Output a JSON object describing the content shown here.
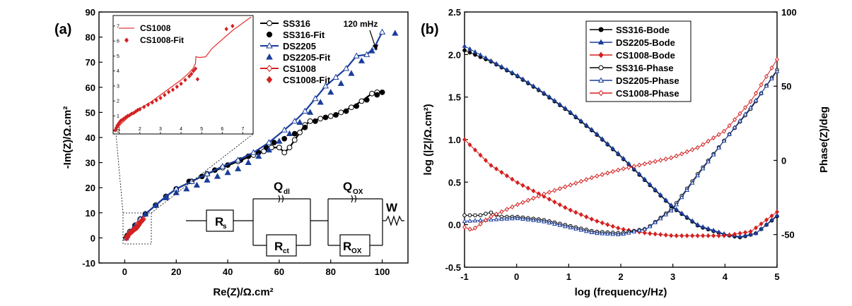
{
  "chart_data": [
    {
      "panel": "a",
      "type": "scatter",
      "panel_label": "(a)",
      "xlabel": "Re(Z)/Ω.cm²",
      "ylabel": "-Im(Z)/Ω.cm²",
      "xlim": [
        -10,
        110
      ],
      "ylim": [
        -10,
        90
      ],
      "xticks": [
        0,
        20,
        40,
        60,
        80,
        100
      ],
      "yticks": [
        -10,
        0,
        10,
        20,
        30,
        40,
        50,
        60,
        70,
        80,
        90
      ],
      "annotation": "120 mHz",
      "legend_position": "top-right",
      "series": [
        {
          "name": "SS316",
          "color": "#000000",
          "marker": "open-circle",
          "points": [
            [
              0.5,
              0
            ],
            [
              2,
              2.5
            ],
            [
              4,
              5
            ],
            [
              6,
              7.5
            ],
            [
              8,
              9.5
            ],
            [
              12,
              13
            ],
            [
              16,
              16.5
            ],
            [
              20,
              19.5
            ],
            [
              26,
              22.5
            ],
            [
              32,
              25.5
            ],
            [
              38,
              28
            ],
            [
              44,
              30.5
            ],
            [
              50,
              33
            ],
            [
              54,
              34.5
            ],
            [
              57,
              36
            ],
            [
              60,
              36
            ],
            [
              62,
              34
            ],
            [
              64,
              36
            ],
            [
              66,
              39
            ],
            [
              68,
              42
            ],
            [
              70,
              45
            ],
            [
              72,
              46.5
            ],
            [
              76,
              47.5
            ],
            [
              80,
              48.5
            ],
            [
              84,
              50
            ],
            [
              88,
              52
            ],
            [
              92,
              54.5
            ],
            [
              96,
              57.5
            ],
            [
              98,
              58
            ]
          ]
        },
        {
          "name": "SS316-Fit",
          "color": "#000000",
          "marker": "filled-circle",
          "points": [
            [
              1,
              1
            ],
            [
              4,
              5
            ],
            [
              8,
              9.5
            ],
            [
              12,
              13
            ],
            [
              16,
              16.5
            ],
            [
              20,
              19.5
            ],
            [
              25,
              22.5
            ],
            [
              30,
              24.5
            ],
            [
              35,
              27
            ],
            [
              40,
              29
            ],
            [
              45,
              31
            ],
            [
              48,
              32.5
            ],
            [
              52,
              34
            ],
            [
              55,
              36
            ],
            [
              58,
              38
            ],
            [
              62,
              39.5
            ],
            [
              66,
              41.5
            ],
            [
              70,
              44
            ],
            [
              74,
              46.5
            ],
            [
              78,
              48
            ],
            [
              82,
              49
            ],
            [
              86,
              50.5
            ],
            [
              90,
              52.5
            ],
            [
              94,
              55
            ],
            [
              98,
              57
            ],
            [
              100,
              58
            ]
          ]
        },
        {
          "name": "DS2205",
          "color": "#1a3d9c",
          "marker": "open-triangle",
          "points": [
            [
              0.5,
              0
            ],
            [
              2,
              2.5
            ],
            [
              4,
              5
            ],
            [
              6,
              7.5
            ],
            [
              8,
              9.5
            ],
            [
              12,
              13
            ],
            [
              16,
              16.5
            ],
            [
              20,
              19.5
            ],
            [
              26,
              22.5
            ],
            [
              32,
              25.5
            ],
            [
              38,
              28.5
            ],
            [
              44,
              31
            ],
            [
              50,
              34
            ],
            [
              56,
              38
            ],
            [
              62,
              43
            ],
            [
              66,
              46.5
            ],
            [
              70,
              50.5
            ],
            [
              74,
              55.5
            ],
            [
              78,
              60.5
            ],
            [
              82,
              64
            ],
            [
              86,
              67.5
            ],
            [
              90,
              72.5
            ],
            [
              94,
              73
            ],
            [
              97,
              76
            ],
            [
              100,
              82
            ]
          ]
        },
        {
          "name": "DS2205-Fit",
          "color": "#1a3d9c",
          "marker": "filled-triangle",
          "points": [
            [
              1,
              1
            ],
            [
              4,
              5
            ],
            [
              8,
              9.5
            ],
            [
              12,
              13
            ],
            [
              16,
              16
            ],
            [
              20,
              18
            ],
            [
              24,
              19.5
            ],
            [
              28,
              21
            ],
            [
              32,
              23
            ],
            [
              36,
              24.5
            ],
            [
              40,
              26
            ],
            [
              44,
              27.5
            ],
            [
              48,
              30
            ],
            [
              52,
              32.5
            ],
            [
              56,
              35
            ],
            [
              60,
              38.5
            ],
            [
              64,
              41.5
            ],
            [
              68,
              46
            ],
            [
              72,
              50
            ],
            [
              76,
              54
            ],
            [
              80,
              58
            ],
            [
              84,
              61.5
            ],
            [
              88,
              65.5
            ],
            [
              92,
              70.5
            ],
            [
              96,
              74.5
            ],
            [
              105,
              81.5
            ]
          ]
        },
        {
          "name": "CS1008",
          "color": "#d42020",
          "marker": "open-diamond",
          "points": [
            [
              0.8,
              0
            ],
            [
              1.2,
              0.8
            ],
            [
              1.6,
              1.4
            ],
            [
              2.1,
              2
            ],
            [
              2.6,
              2.5
            ],
            [
              3.2,
              3
            ],
            [
              3.8,
              3.5
            ],
            [
              4.4,
              4
            ],
            [
              4.8,
              4.4
            ],
            [
              4.9,
              5.5
            ],
            [
              5.3,
              5.5
            ],
            [
              6,
              6.2
            ],
            [
              7.2,
              7.5
            ]
          ]
        },
        {
          "name": "CS1008-Fit",
          "color": "#d42020",
          "marker": "filled-diamond",
          "points": [
            [
              0.8,
              0.1
            ],
            [
              1.0,
              0.6
            ],
            [
              1.3,
              1.1
            ],
            [
              1.7,
              1.6
            ],
            [
              2.2,
              2.1
            ],
            [
              2.7,
              2.5
            ],
            [
              3.2,
              3
            ],
            [
              3.8,
              3.5
            ],
            [
              4.3,
              3.9
            ],
            [
              4.8,
              4.2
            ],
            [
              5.5,
              5.2
            ],
            [
              6.4,
              6.5
            ],
            [
              7,
              7.2
            ]
          ]
        }
      ],
      "inset": {
        "xlim": [
          0.7,
          7.5
        ],
        "ylim": [
          -0.2,
          7.7
        ],
        "xticks": [
          1,
          2,
          3,
          4,
          5,
          6,
          7
        ],
        "yticks": [
          0,
          1,
          2,
          3,
          4,
          5,
          6,
          7
        ],
        "legend": [
          "CS1008",
          "CS1008-Fit"
        ],
        "line_points": [
          [
            0.8,
            0
          ],
          [
            1.1,
            0.5
          ],
          [
            1.5,
            1.0
          ],
          [
            2.0,
            1.5
          ],
          [
            2.5,
            1.9
          ],
          [
            3.0,
            2.4
          ],
          [
            3.5,
            2.9
          ],
          [
            4.0,
            3.4
          ],
          [
            4.4,
            3.9
          ],
          [
            4.6,
            4.2
          ],
          [
            4.7,
            4.5
          ],
          [
            4.72,
            4.95
          ],
          [
            4.9,
            4.9
          ],
          [
            5.2,
            4.95
          ],
          [
            5.5,
            5.5
          ],
          [
            6.0,
            6.1
          ],
          [
            6.5,
            6.7
          ],
          [
            7.0,
            7.2
          ],
          [
            7.4,
            7.6
          ]
        ],
        "fit_points": [
          [
            0.8,
            0.05
          ],
          [
            0.85,
            0.2
          ],
          [
            0.9,
            0.35
          ],
          [
            0.95,
            0.45
          ],
          [
            1.0,
            0.55
          ],
          [
            1.05,
            0.65
          ],
          [
            1.1,
            0.7
          ],
          [
            1.2,
            0.8
          ],
          [
            1.3,
            0.9
          ],
          [
            1.4,
            1.0
          ],
          [
            1.5,
            1.05
          ],
          [
            1.6,
            1.15
          ],
          [
            1.7,
            1.2
          ],
          [
            1.8,
            1.3
          ],
          [
            1.9,
            1.4
          ],
          [
            2.0,
            1.45
          ],
          [
            2.2,
            1.6
          ],
          [
            2.4,
            1.75
          ],
          [
            2.6,
            1.9
          ],
          [
            2.8,
            2.05
          ],
          [
            3.0,
            2.2
          ],
          [
            3.2,
            2.4
          ],
          [
            3.4,
            2.6
          ],
          [
            3.6,
            2.75
          ],
          [
            3.8,
            2.95
          ],
          [
            4.0,
            3.15
          ],
          [
            4.2,
            3.4
          ],
          [
            4.4,
            3.65
          ],
          [
            4.5,
            3.8
          ],
          [
            4.6,
            4.0
          ],
          [
            4.7,
            4.15
          ],
          [
            4.8,
            3.45
          ],
          [
            6.2,
            6.8
          ],
          [
            6.5,
            7.0
          ]
        ]
      },
      "circuit": {
        "Rs": "R",
        "Rs_sub": "s",
        "Qdl": "Q",
        "Qdl_sub": "dl",
        "Rct": "R",
        "Rct_sub": "ct",
        "Qox": "Q",
        "Qox_sub": "OX",
        "Rox": "R",
        "Rox_sub": "OX",
        "W": "W"
      }
    },
    {
      "panel": "b",
      "type": "line",
      "panel_label": "(b)",
      "xlabel": "log (frequency/Hz)",
      "ylabel": "log (|Z|/Ω.cm²)",
      "ylabel_right": "Phase(Z)/deg",
      "xlim": [
        -1,
        5
      ],
      "ylim": [
        -0.5,
        2.5
      ],
      "ylim_right": [
        -72,
        100
      ],
      "xticks": [
        -1,
        0,
        1,
        2,
        3,
        4,
        5
      ],
      "yticks": [
        -0.5,
        0.0,
        0.5,
        1.0,
        1.5,
        2.0,
        2.5
      ],
      "yticks_right": [
        -50,
        0,
        50,
        100
      ],
      "legend_position": "top-center",
      "series": [
        {
          "name": "SS316-Bode",
          "axis": "left",
          "color": "#000000",
          "marker": "filled-circle",
          "x": [
            -1,
            -0.5,
            0,
            0.5,
            1,
            1.5,
            2,
            2.5,
            3,
            3.5,
            4,
            4.3,
            4.6,
            5
          ],
          "y": [
            2.05,
            1.92,
            1.75,
            1.55,
            1.33,
            1.08,
            0.8,
            0.5,
            0.2,
            -0.02,
            -0.12,
            -0.15,
            -0.1,
            0.1
          ]
        },
        {
          "name": "DS2205-Bode",
          "axis": "left",
          "color": "#1a3d9c",
          "marker": "filled-triangle",
          "x": [
            -1,
            -0.5,
            0,
            0.5,
            1,
            1.5,
            2,
            2.5,
            3,
            3.5,
            4,
            4.3,
            4.6,
            5
          ],
          "y": [
            2.1,
            1.93,
            1.76,
            1.56,
            1.34,
            1.09,
            0.81,
            0.51,
            0.21,
            -0.01,
            -0.11,
            -0.14,
            -0.1,
            0.11
          ]
        },
        {
          "name": "CS1008-Bode",
          "axis": "left",
          "color": "#d42020",
          "marker": "filled-diamond",
          "x": [
            -1,
            -0.7,
            -0.5,
            0,
            0.5,
            1,
            1.5,
            2,
            2.5,
            3,
            3.5,
            4,
            4.5,
            5
          ],
          "y": [
            1.0,
            0.82,
            0.7,
            0.5,
            0.34,
            0.18,
            0.05,
            -0.05,
            -0.1,
            -0.13,
            -0.13,
            -0.13,
            -0.08,
            0.15
          ]
        },
        {
          "name": "SS316-Phase",
          "axis": "right",
          "color": "#000000",
          "marker": "open-circle",
          "x": [
            -1,
            -0.7,
            -0.5,
            -0.3,
            0,
            0.5,
            1,
            1.5,
            2,
            2.5,
            3,
            3.5,
            4,
            4.5,
            5
          ],
          "y": [
            -37,
            -37,
            -35,
            -38,
            -38,
            -40,
            -44,
            -48,
            -49,
            -46,
            -32,
            -8,
            14,
            35,
            61
          ]
        },
        {
          "name": "DS2205-Phase",
          "axis": "right",
          "color": "#1a3d9c",
          "marker": "open-triangle",
          "x": [
            -1,
            -0.5,
            0,
            0.5,
            1,
            1.5,
            2,
            2.5,
            3,
            3.5,
            4,
            4.5,
            5
          ],
          "y": [
            -41,
            -40,
            -39,
            -41,
            -45,
            -49,
            -50,
            -46,
            -33,
            -9,
            14,
            36,
            60
          ]
        },
        {
          "name": "CS1008-Phase",
          "axis": "right",
          "color": "#d42020",
          "marker": "open-diamond",
          "x": [
            -1,
            -0.85,
            -0.7,
            -0.5,
            0,
            0.5,
            1,
            1.5,
            2,
            2.5,
            3,
            3.5,
            4,
            4.5,
            5
          ],
          "y": [
            -45,
            -47,
            -43,
            -38,
            -30,
            -23,
            -17,
            -11,
            -6,
            -2,
            2,
            9,
            20,
            40,
            68
          ]
        }
      ]
    }
  ]
}
